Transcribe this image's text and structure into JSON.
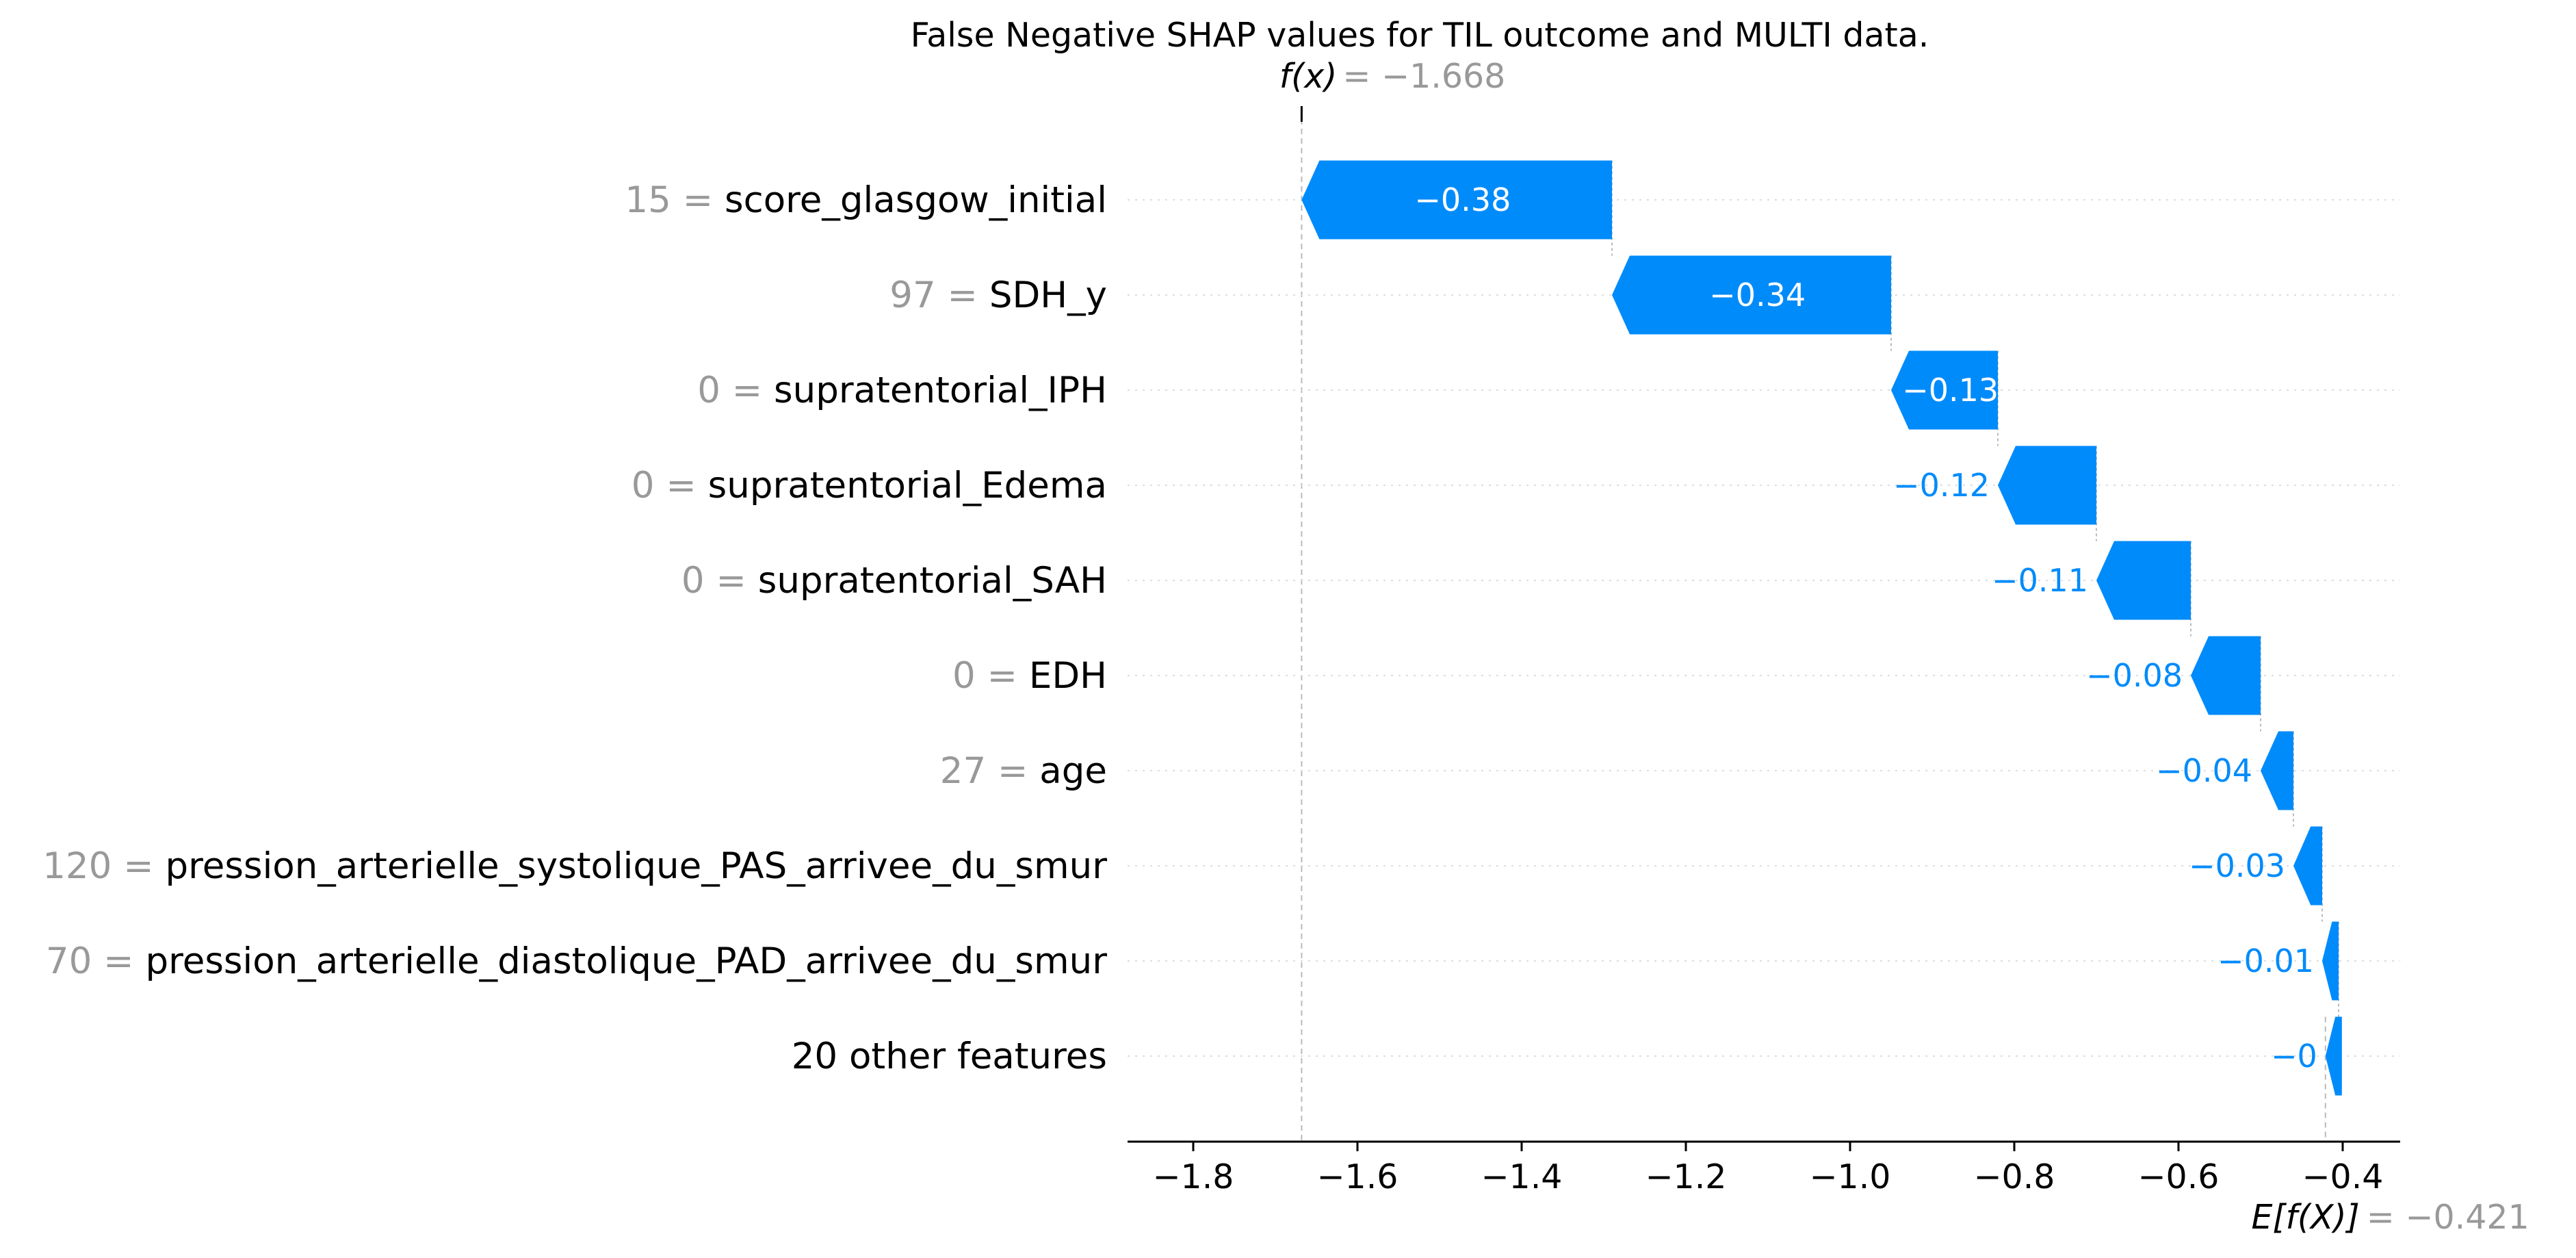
{
  "chart_data": {
    "type": "waterfall",
    "title": "False Negative SHAP values for TIL outcome and MULTI data.",
    "fx_label": "f(x)",
    "fx_value": "= −1.668",
    "fx": -1.668,
    "base_label": "E[f(X)]",
    "base_value_text": "= −0.421",
    "base_value": -0.421,
    "xlim": [
      -1.88,
      -0.33
    ],
    "xticks": [
      -1.8,
      -1.6,
      -1.4,
      -1.2,
      -1.0,
      -0.8,
      -0.6,
      -0.4
    ],
    "xtick_labels": [
      "−1.8",
      "−1.6",
      "−1.4",
      "−1.2",
      "−1.0",
      "−0.8",
      "−0.6",
      "−0.4"
    ],
    "colors": {
      "negative": "#008bfb",
      "feature_value": "#999999",
      "text": "#000000"
    },
    "features": [
      {
        "value": "15",
        "name": "score_glasgow_initial",
        "end": -1.29,
        "start": -1.668,
        "label": "−0.38"
      },
      {
        "value": "97",
        "name": "SDH_y",
        "end": -0.95,
        "start": -1.29,
        "label": "−0.34"
      },
      {
        "value": "0",
        "name": "supratentorial_IPH",
        "end": -0.82,
        "start": -0.95,
        "label": "−0.13"
      },
      {
        "value": "0",
        "name": "supratentorial_Edema",
        "end": -0.7,
        "start": -0.82,
        "label": "−0.12"
      },
      {
        "value": "0",
        "name": "supratentorial_SAH",
        "end": -0.585,
        "start": -0.7,
        "label": "−0.11"
      },
      {
        "value": "0",
        "name": "EDH",
        "end": -0.5,
        "start": -0.585,
        "label": "−0.08"
      },
      {
        "value": "27",
        "name": "age",
        "end": -0.46,
        "start": -0.5,
        "label": "−0.04"
      },
      {
        "value": "120",
        "name": "pression_arterielle_systolique_PAS_arrivee_du_smur",
        "end": -0.425,
        "start": -0.46,
        "label": "−0.03"
      },
      {
        "value": "70",
        "name": "pression_arterielle_diastolique_PAD_arrivee_du_smur",
        "end": -0.405,
        "start": -0.425,
        "label": "−0.01"
      },
      {
        "value": "",
        "name": "20 other features",
        "end": -0.401,
        "start": -0.421,
        "label": "−0"
      }
    ]
  }
}
